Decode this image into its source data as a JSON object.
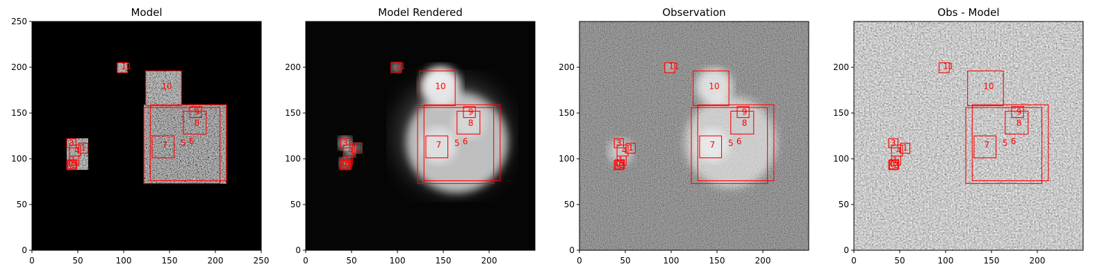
{
  "chart_data": [
    {
      "type": "heatmap",
      "title": "Model",
      "xlim": [
        0,
        250
      ],
      "ylim": [
        0,
        250
      ],
      "xticks": [
        "0",
        "50",
        "100",
        "150",
        "200",
        "250"
      ],
      "yticks": [
        "0",
        "50",
        "100",
        "150",
        "200",
        "250"
      ],
      "style": "sparse-speckle"
    },
    {
      "type": "heatmap",
      "title": "Model Rendered",
      "xlim": [
        0,
        250
      ],
      "ylim": [
        0,
        250
      ],
      "xticks": [
        "0",
        "50",
        "100",
        "150",
        "200"
      ],
      "yticks": [
        "0",
        "50",
        "100",
        "150",
        "200"
      ],
      "style": "smooth-glow"
    },
    {
      "type": "heatmap",
      "title": "Observation",
      "xlim": [
        0,
        250
      ],
      "ylim": [
        0,
        250
      ],
      "xticks": [
        "0",
        "50",
        "100",
        "150",
        "200"
      ],
      "yticks": [
        "0",
        "50",
        "100",
        "150",
        "200"
      ],
      "style": "noisy-glow"
    },
    {
      "type": "heatmap",
      "title": "Obs - Model",
      "xlim": [
        0,
        250
      ],
      "ylim": [
        0,
        250
      ],
      "xticks": [
        "0",
        "50",
        "100",
        "150",
        "200"
      ],
      "yticks": [
        "0",
        "50",
        "100",
        "150",
        "200"
      ],
      "style": "residual-noise"
    }
  ],
  "sources": [
    {
      "id": "0",
      "x0": 38,
      "x1": 48,
      "y0": 88,
      "y1": 98,
      "label_x": 42,
      "label_y": 94
    },
    {
      "id": "1",
      "x0": 41,
      "x1": 51,
      "y0": 93,
      "y1": 103,
      "label_x": 45,
      "label_y": 98
    },
    {
      "id": "2",
      "x0": 39,
      "x1": 49,
      "y0": 89,
      "y1": 99,
      "label_x": 46,
      "label_y": 93
    },
    {
      "id": "3",
      "x0": 38,
      "x1": 48,
      "y0": 112,
      "y1": 122,
      "label_x": 43,
      "label_y": 117
    },
    {
      "id": "4",
      "x0": 41,
      "x1": 53,
      "y0": 103,
      "y1": 115,
      "label_x": 49,
      "label_y": 109
    },
    {
      "id": "5",
      "x0": 122,
      "x1": 205,
      "y0": 73,
      "y1": 156,
      "label_x": 165,
      "label_y": 117
    },
    {
      "id": "6",
      "x0": 129,
      "x1": 212,
      "y0": 76,
      "y1": 159,
      "label_x": 174,
      "label_y": 119
    },
    {
      "id": "7",
      "x0": 131,
      "x1": 155,
      "y0": 101,
      "y1": 125,
      "label_x": 145,
      "label_y": 115
    },
    {
      "id": "8",
      "x0": 165,
      "x1": 190,
      "y0": 127,
      "y1": 152,
      "label_x": 180,
      "label_y": 139
    },
    {
      "id": "9",
      "x0": 172,
      "x1": 185,
      "y0": 145,
      "y1": 157,
      "label_x": 180,
      "label_y": 151
    },
    {
      "id": "10",
      "x0": 124,
      "x1": 163,
      "y0": 158,
      "y1": 196,
      "label_x": 147,
      "label_y": 179
    },
    {
      "id": "11",
      "x0": 93,
      "x1": 104,
      "y0": 194,
      "y1": 205,
      "label_x": 103,
      "label_y": 201
    },
    {
      "id": "1",
      "x0": 51,
      "x1": 61,
      "y0": 106,
      "y1": 117,
      "label_x": 56,
      "label_y": 112
    }
  ],
  "colors": {
    "box": "#ff0000",
    "frame": "#000000"
  }
}
